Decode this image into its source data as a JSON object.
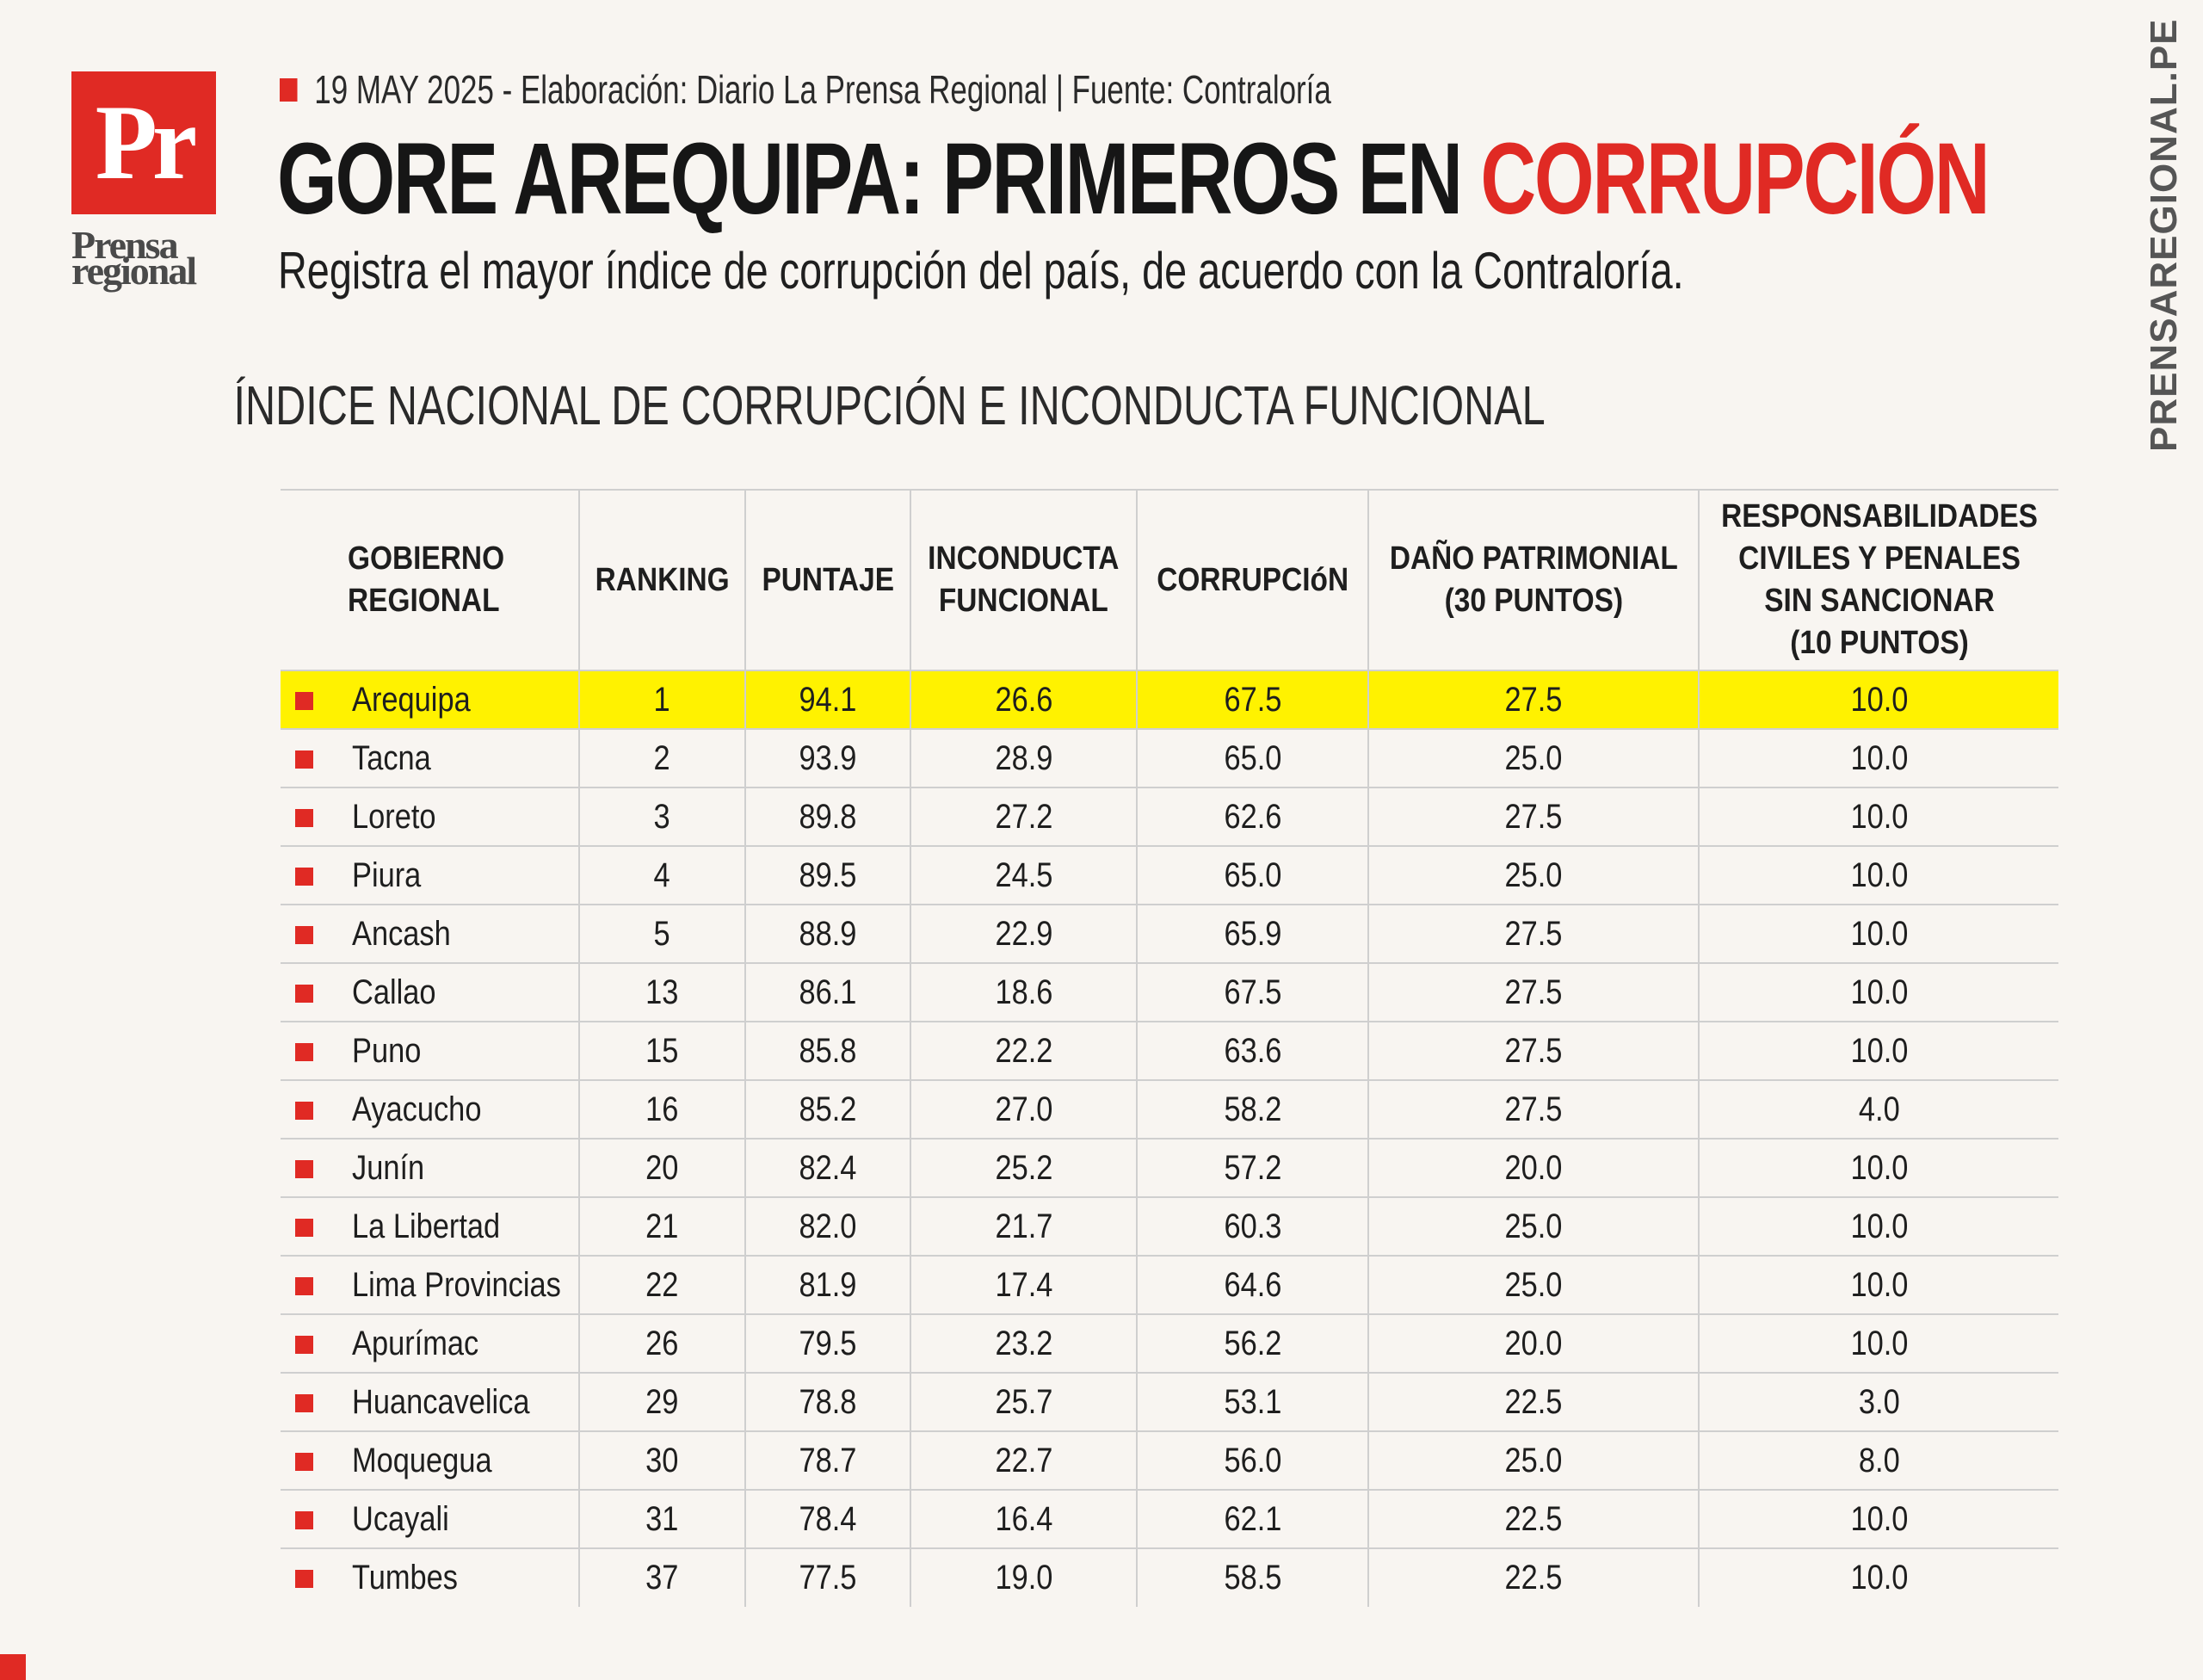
{
  "brand": {
    "logo_mark": "Pr",
    "logo_name_line1": "Prensa",
    "logo_name_line2": "regional",
    "side_url": "PRENSAREGIONAL.PE",
    "accent_color": "#e02a24",
    "highlight_color": "#fff200"
  },
  "header": {
    "meta_line": "19 MAY 2025 -  Elaboración: Diario La Prensa Regional | Fuente: Contraloría",
    "headline_black": "GORE AREQUIPA: PRIMEROS EN ",
    "headline_red": "CORRUPCIÓN",
    "subtitle": "Registra el mayor índice de corrupción del país, de acuerdo con la Contraloría."
  },
  "table_title": "ÍNDICE NACIONAL DE CORRUPCIÓN E INCONDUCTA FUNCIONAL",
  "columns": [
    "GOBIERNO\nREGIONAL",
    "RANKING",
    "PUNTAJE",
    "INCONDUCTA\nFUNCIONAL",
    "CORRUPCIóN",
    "DAÑO PATRIMONIAL\n(30 PUNTOS)",
    "RESPONSABILIDADES\nCIVILES Y PENALES\nSIN SANCIONAR\n(10 PUNTOS)"
  ],
  "rows": [
    [
      "Arequipa",
      "1",
      "94.1",
      "26.6",
      "67.5",
      "27.5",
      "10.0"
    ],
    [
      "Tacna",
      "2",
      "93.9",
      "28.9",
      "65.0",
      "25.0",
      "10.0"
    ],
    [
      "Loreto",
      "3",
      "89.8",
      "27.2",
      "62.6",
      "27.5",
      "10.0"
    ],
    [
      "Piura",
      "4",
      "89.5",
      "24.5",
      "65.0",
      "25.0",
      "10.0"
    ],
    [
      "Ancash",
      "5",
      "88.9",
      "22.9",
      "65.9",
      "27.5",
      "10.0"
    ],
    [
      "Callao",
      "13",
      "86.1",
      "18.6",
      "67.5",
      "27.5",
      "10.0"
    ],
    [
      "Puno",
      "15",
      "85.8",
      "22.2",
      "63.6",
      "27.5",
      "10.0"
    ],
    [
      "Ayacucho",
      "16",
      "85.2",
      "27.0",
      "58.2",
      "27.5",
      "4.0"
    ],
    [
      "Junín",
      "20",
      "82.4",
      "25.2",
      "57.2",
      "20.0",
      "10.0"
    ],
    [
      "La Libertad",
      "21",
      "82.0",
      "21.7",
      "60.3",
      "25.0",
      "10.0"
    ],
    [
      "Lima Provincias",
      "22",
      "81.9",
      "17.4",
      "64.6",
      "25.0",
      "10.0"
    ],
    [
      "Apurímac",
      "26",
      "79.5",
      "23.2",
      "56.2",
      "20.0",
      "10.0"
    ],
    [
      "Huancavelica",
      "29",
      "78.8",
      "25.7",
      "53.1",
      "22.5",
      "3.0"
    ],
    [
      "Moquegua",
      "30",
      "78.7",
      "22.7",
      "56.0",
      "25.0",
      "8.0"
    ],
    [
      "Ucayali",
      "31",
      "78.4",
      "16.4",
      "62.1",
      "22.5",
      "10.0"
    ],
    [
      "Tumbes",
      "37",
      "77.5",
      "19.0",
      "58.5",
      "22.5",
      "10.0"
    ]
  ]
}
